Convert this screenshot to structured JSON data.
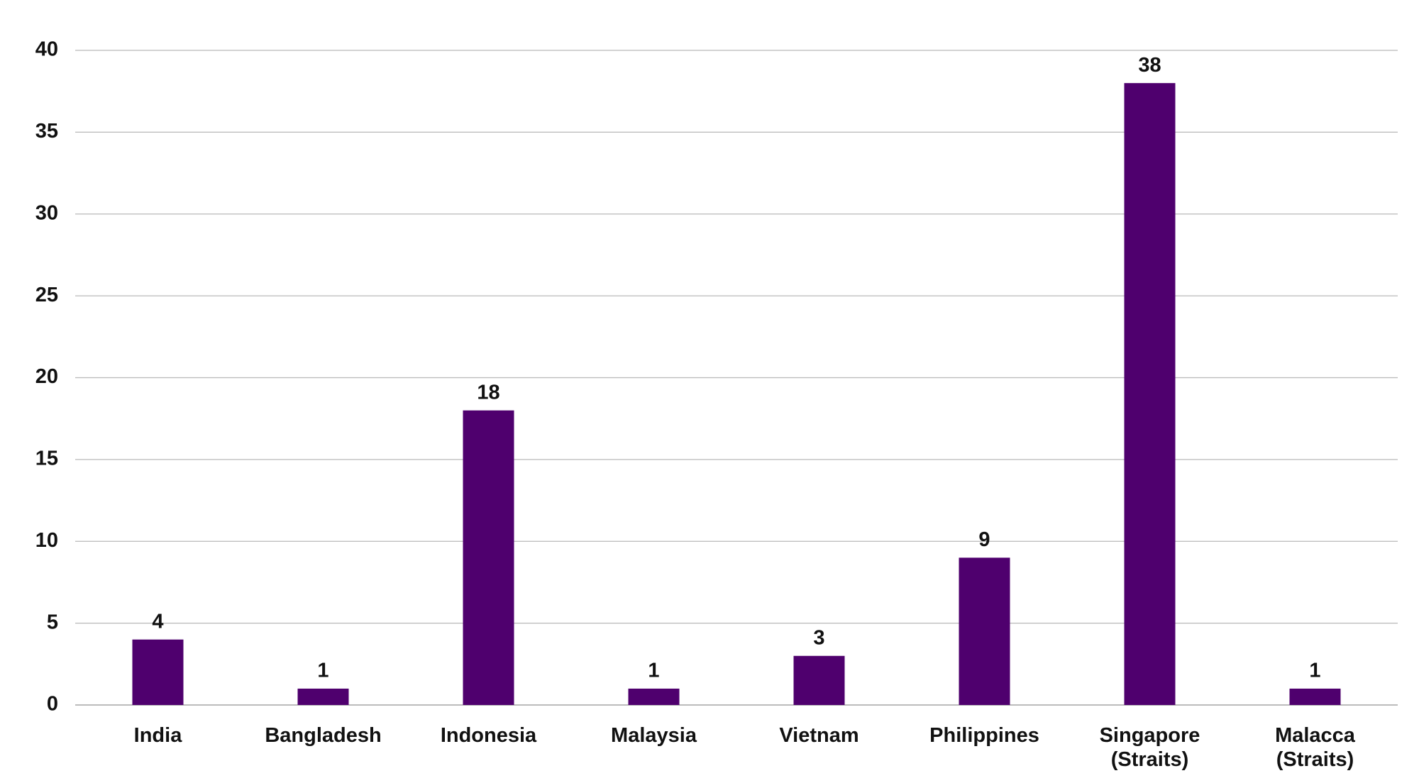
{
  "chart_data": {
    "type": "bar",
    "categories": [
      "India",
      "Bangladesh",
      "Indonesia",
      "Malaysia",
      "Vietnam",
      "Philippines",
      "Singapore (Straits)",
      "Malacca (Straits)"
    ],
    "values": [
      4,
      1,
      18,
      1,
      3,
      9,
      38,
      1
    ],
    "color": "#4f006e",
    "ylim": [
      0,
      40
    ],
    "yticks": [
      0,
      5,
      10,
      15,
      20,
      25,
      30,
      35,
      40
    ],
    "grid": true
  }
}
